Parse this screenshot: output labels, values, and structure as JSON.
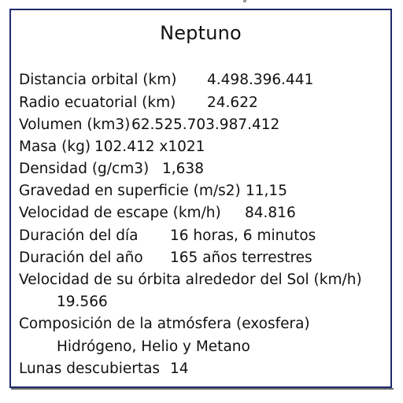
{
  "title": "Neptuno",
  "rows": {
    "orbital_distance": {
      "label": "Distancia orbital (km)",
      "value": "4.498.396.441"
    },
    "equatorial_radius": {
      "label": "Radio ecuatorial (km)",
      "value": "24.622"
    },
    "volume": {
      "label": "Volumen (km3)",
      "value": "62.525.703.987.412"
    },
    "mass": {
      "label": "Masa (kg)",
      "value": "102.412 x1021"
    },
    "density": {
      "label": "Densidad (g/cm3)",
      "value": "1,638"
    },
    "gravity": {
      "label": "Gravedad en superficie (m/s2)",
      "value": "11,15"
    },
    "escape_velocity": {
      "label": "Velocidad de escape (km/h)",
      "value": "84.816"
    },
    "day_length": {
      "label": "Duración del día",
      "value": "16 horas, 6 minutos"
    },
    "year_length": {
      "label": "Duración del año",
      "value": "165 años terrestres"
    },
    "orbit_speed": {
      "label": "Velocidad de su órbita alrededor del Sol (km/h)",
      "value": "19.566"
    },
    "atmosphere": {
      "label": "Composición de la atmósfera (exosfera)",
      "value": "Hidrógeno, Helio y Metano"
    },
    "moons": {
      "label": "Lunas descubiertas",
      "value": "14"
    }
  }
}
